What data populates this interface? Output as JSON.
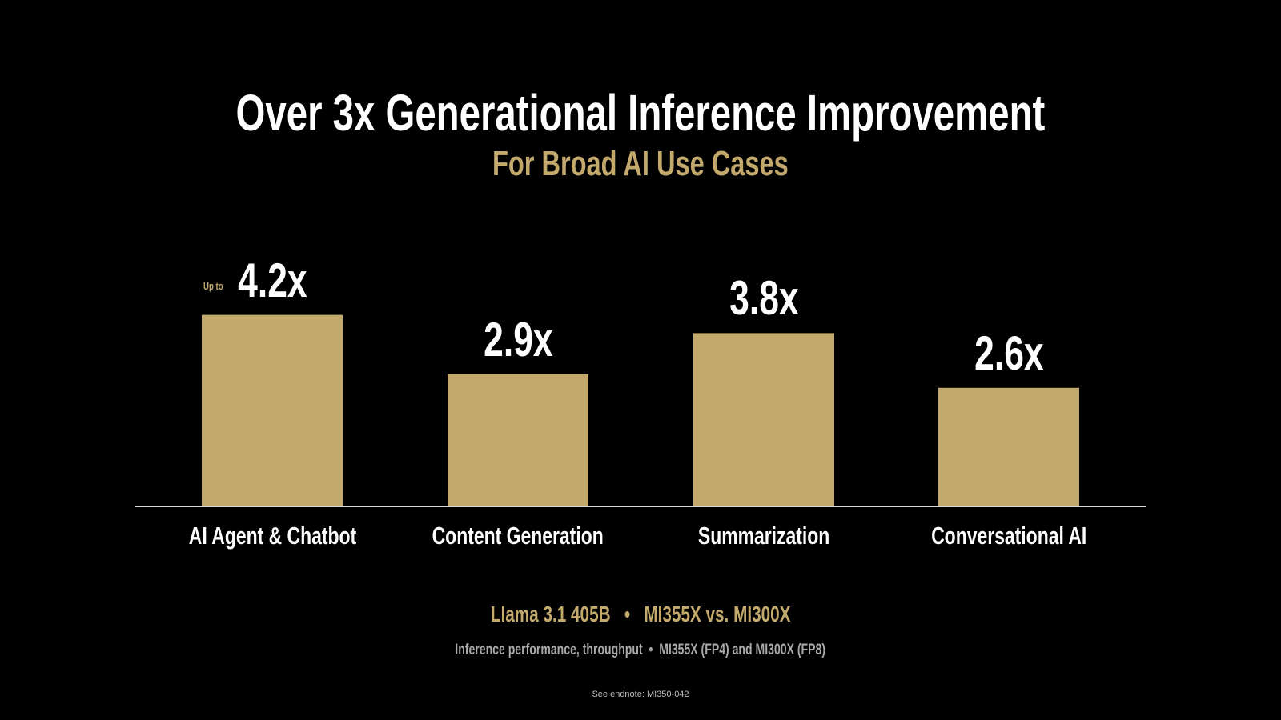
{
  "title": "Over 3x Generational Inference Improvement",
  "subtitle": "For Broad AI Use Cases",
  "chart_data": {
    "type": "bar",
    "categories": [
      "AI Agent & Chatbot",
      "Content Generation",
      "Summarization",
      "Conversational AI"
    ],
    "values": [
      4.2,
      2.9,
      3.8,
      2.6
    ],
    "value_labels": [
      "4.2x",
      "2.9x",
      "3.8x",
      "2.6x"
    ],
    "value_prefix": [
      "Up to",
      "",
      "",
      ""
    ],
    "bar_color": "#c3aa6c",
    "title": "Over 3x Generational Inference Improvement",
    "xlabel": "",
    "ylabel": "",
    "grid": false
  },
  "footer": {
    "line1": "Llama 3.1 405B   •   MI355X vs. MI300X",
    "line2": "Inference performance, throughput  •  MI355X (FP4) and MI300X (FP8)",
    "endnote": "See endnote: MI350-042"
  }
}
